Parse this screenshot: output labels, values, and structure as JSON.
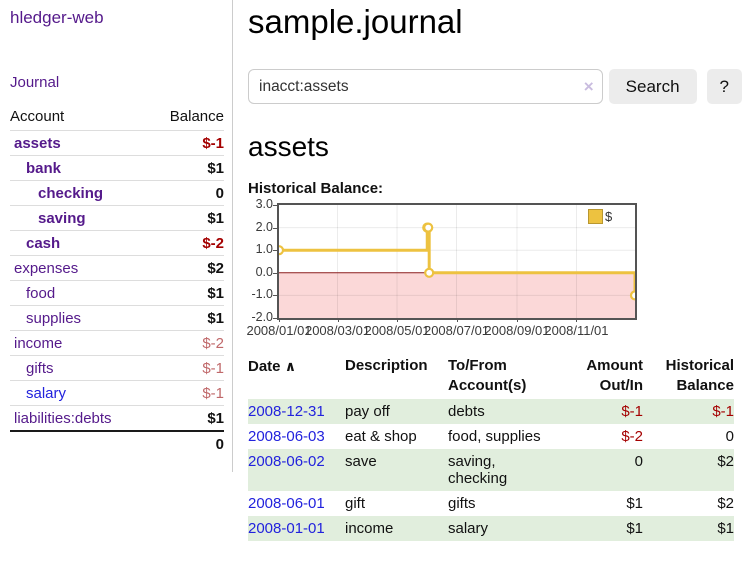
{
  "app": {
    "title": "hledger-web"
  },
  "sidebar": {
    "journal_link": "Journal",
    "accounts": {
      "col_account": "Account",
      "col_balance": "Balance",
      "rows": [
        {
          "name": "assets",
          "balance": "$-1"
        },
        {
          "name": "bank",
          "balance": "$1"
        },
        {
          "name": "checking",
          "balance": "0"
        },
        {
          "name": "saving",
          "balance": "$1"
        },
        {
          "name": "cash",
          "balance": "$-2"
        },
        {
          "name": "expenses",
          "balance": "$2"
        },
        {
          "name": "food",
          "balance": "$1"
        },
        {
          "name": "supplies",
          "balance": "$1"
        },
        {
          "name": "income",
          "balance": "$-2"
        },
        {
          "name": "gifts",
          "balance": "$-1"
        },
        {
          "name": "salary",
          "balance": "$-1"
        },
        {
          "name": "liabilities:debts",
          "balance": "$1"
        }
      ],
      "total": "0"
    }
  },
  "main": {
    "title": "sample.journal",
    "search": {
      "value": "inacct:assets",
      "clear_icon": "×",
      "search_button": "Search",
      "help_button": "?"
    },
    "account_heading": "assets",
    "chart_title": "Historical Balance:"
  },
  "chart_data": {
    "type": "line",
    "title": "Historical Balance:",
    "style": "step",
    "series": [
      {
        "name": "$",
        "color": "#edc240",
        "points": [
          {
            "date": "2008-01-01",
            "day": 0,
            "value": 1
          },
          {
            "date": "2008-06-01",
            "day": 152,
            "value": 2
          },
          {
            "date": "2008-06-02",
            "day": 153,
            "value": 2
          },
          {
            "date": "2008-06-03",
            "day": 154,
            "value": 0
          },
          {
            "date": "2008-12-31",
            "day": 365,
            "value": -1
          }
        ]
      }
    ],
    "x_ticks": [
      {
        "day": 0,
        "label": "2008/01/01"
      },
      {
        "day": 60,
        "label": "2008/03/01"
      },
      {
        "day": 121,
        "label": "2008/05/01"
      },
      {
        "day": 182,
        "label": "2008/07/01"
      },
      {
        "day": 244,
        "label": "2008/09/01"
      },
      {
        "day": 305,
        "label": "2008/11/01"
      }
    ],
    "y_ticks": [
      3.0,
      2.0,
      1.0,
      0.0,
      -1.0,
      -2.0
    ],
    "xlim": [
      0,
      365
    ],
    "ylim": [
      -2,
      3
    ],
    "grid": true,
    "negative_region_color": "#fbd8d8",
    "zero_line_color": "#8b1d1d",
    "legend_position": "top-right"
  },
  "register": {
    "headers": {
      "date": "Date",
      "date_sort_icon": "∧",
      "description": "Description",
      "accounts": "To/From Account(s)",
      "amount": "Amount Out/In",
      "balance": "Historical Balance"
    },
    "rows": [
      {
        "date": "2008-12-31",
        "description": "pay off",
        "accounts": "debts",
        "amount": "$-1",
        "balance": "$-1"
      },
      {
        "date": "2008-06-03",
        "description": "eat & shop",
        "accounts": "food, supplies",
        "amount": "$-2",
        "balance": "0"
      },
      {
        "date": "2008-06-02",
        "description": "save",
        "accounts": "saving, checking",
        "amount": "0",
        "balance": "$2"
      },
      {
        "date": "2008-06-01",
        "description": "gift",
        "accounts": "gifts",
        "amount": "$1",
        "balance": "$2"
      },
      {
        "date": "2008-01-01",
        "description": "income",
        "accounts": "salary",
        "amount": "$1",
        "balance": "$1"
      }
    ]
  }
}
